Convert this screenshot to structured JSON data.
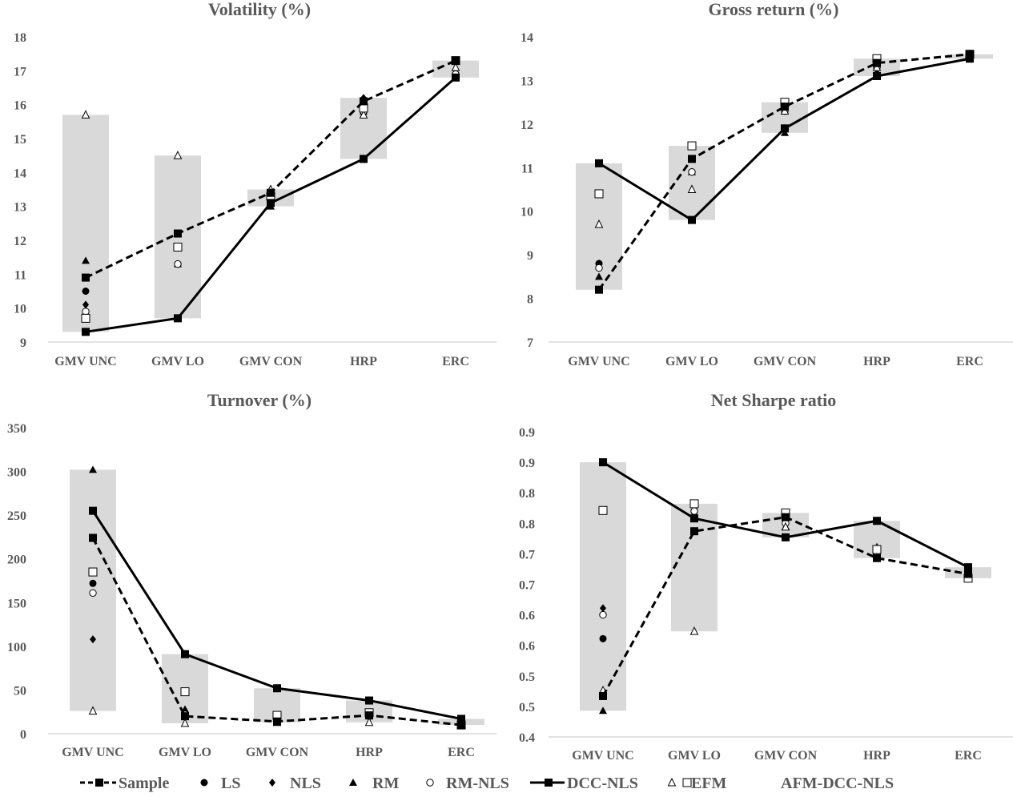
{
  "legend": [
    "Sample",
    "LS",
    "NLS",
    "RM",
    "RM-NLS",
    "DCC-NLS",
    "EFM",
    "AFM-DCC-NLS"
  ],
  "colors": {
    "bar": "#d9d9d9",
    "line": "#000000",
    "text": "#595959",
    "axis": "#d9d9d9"
  },
  "chart_data": [
    {
      "type": "line",
      "title": "Volatility (%)",
      "categories": [
        "GMV UNC",
        "GMV LO",
        "GMV CON",
        "HRP",
        "ERC"
      ],
      "ylim": [
        9,
        18
      ],
      "yticks": [
        {
          "v": 9,
          "label": "9"
        },
        {
          "v": 10,
          "label": "10"
        },
        {
          "v": 11,
          "label": "11"
        },
        {
          "v": 12,
          "label": "12"
        },
        {
          "v": 13,
          "label": "13"
        },
        {
          "v": 14,
          "label": "14"
        },
        {
          "v": 15,
          "label": "15"
        },
        {
          "v": 16,
          "label": "16"
        },
        {
          "v": 17,
          "label": "17"
        },
        {
          "v": 18,
          "label": "18"
        }
      ],
      "series": [
        {
          "name": "Sample",
          "values": [
            10.9,
            12.2,
            13.4,
            16.1,
            17.3
          ]
        },
        {
          "name": "LS",
          "values": [
            10.5,
            11.3,
            13.1,
            16.1,
            16.9
          ]
        },
        {
          "name": "NLS",
          "values": [
            10.1,
            11.3,
            13.1,
            16.2,
            16.9
          ]
        },
        {
          "name": "RM",
          "values": [
            11.4,
            11.3,
            13.0,
            15.8,
            16.9
          ]
        },
        {
          "name": "RM-NLS",
          "values": [
            9.9,
            11.3,
            13.1,
            15.8,
            16.9
          ]
        },
        {
          "name": "DCC-NLS",
          "values": [
            9.3,
            9.7,
            13.1,
            14.4,
            16.8
          ]
        },
        {
          "name": "EFM",
          "values": [
            15.7,
            14.5,
            13.5,
            15.7,
            17.1
          ]
        },
        {
          "name": "AFM-DCC-NLS",
          "values": [
            9.7,
            11.8,
            13.3,
            15.9,
            17.3
          ]
        }
      ]
    },
    {
      "type": "line",
      "title": "Gross return (%)",
      "categories": [
        "GMV UNC",
        "GMV LO",
        "GMV CON",
        "HRP",
        "ERC"
      ],
      "ylim": [
        7,
        14
      ],
      "yticks": [
        {
          "v": 7,
          "label": "7"
        },
        {
          "v": 8,
          "label": "8"
        },
        {
          "v": 9,
          "label": "9"
        },
        {
          "v": 10,
          "label": "10"
        },
        {
          "v": 11,
          "label": "11"
        },
        {
          "v": 12,
          "label": "12"
        },
        {
          "v": 13,
          "label": "13"
        },
        {
          "v": 14,
          "label": "14"
        }
      ],
      "series": [
        {
          "name": "Sample",
          "values": [
            8.2,
            11.2,
            12.4,
            13.4,
            13.6
          ]
        },
        {
          "name": "LS",
          "values": [
            8.8,
            10.9,
            12.3,
            13.3,
            13.5
          ]
        },
        {
          "name": "NLS",
          "values": [
            8.8,
            10.9,
            12.3,
            13.3,
            13.5
          ]
        },
        {
          "name": "RM",
          "values": [
            8.5,
            10.9,
            11.8,
            13.2,
            13.5
          ]
        },
        {
          "name": "RM-NLS",
          "values": [
            8.7,
            10.9,
            12.3,
            13.3,
            13.5
          ]
        },
        {
          "name": "DCC-NLS",
          "values": [
            11.1,
            9.8,
            11.9,
            13.1,
            13.5
          ]
        },
        {
          "name": "EFM",
          "values": [
            9.7,
            10.5,
            12.3,
            13.3,
            13.6
          ]
        },
        {
          "name": "AFM-DCC-NLS",
          "values": [
            10.4,
            11.5,
            12.5,
            13.5,
            13.6
          ]
        }
      ]
    },
    {
      "type": "line",
      "title": "Turnover (%)",
      "categories": [
        "GMV UNC",
        "GMV LO",
        "GMV CON",
        "HRP",
        "ERC"
      ],
      "ylim": [
        0,
        350
      ],
      "yticks": [
        {
          "v": 0,
          "label": "0"
        },
        {
          "v": 50,
          "label": "50"
        },
        {
          "v": 100,
          "label": "100"
        },
        {
          "v": 150,
          "label": "150"
        },
        {
          "v": 200,
          "label": "200"
        },
        {
          "v": 250,
          "label": "250"
        },
        {
          "v": 300,
          "label": "300"
        },
        {
          "v": 350,
          "label": "350"
        }
      ],
      "series": [
        {
          "name": "Sample",
          "values": [
            224,
            20,
            14,
            21,
            10
          ]
        },
        {
          "name": "LS",
          "values": [
            172,
            22,
            14,
            20,
            11
          ]
        },
        {
          "name": "NLS",
          "values": [
            108,
            22,
            14,
            20,
            11
          ]
        },
        {
          "name": "RM",
          "values": [
            302,
            28,
            14,
            20,
            11
          ]
        },
        {
          "name": "RM-NLS",
          "values": [
            161,
            22,
            14,
            20,
            11
          ]
        },
        {
          "name": "DCC-NLS",
          "values": [
            255,
            91,
            52,
            38,
            17
          ]
        },
        {
          "name": "EFM",
          "values": [
            26,
            12,
            13,
            13,
            11
          ]
        },
        {
          "name": "AFM-DCC-NLS",
          "values": [
            185,
            48,
            21,
            24,
            10
          ]
        }
      ]
    },
    {
      "type": "line",
      "title": "Net Sharpe ratio",
      "categories": [
        "GMV UNC",
        "GMV LO",
        "GMV CON",
        "HRP",
        "ERC"
      ],
      "ylim": [
        0.4,
        0.9
      ],
      "yticks": [
        {
          "v": 0.4,
          "label": "0.4"
        },
        {
          "v": 0.45,
          "label": "0.5"
        },
        {
          "v": 0.5,
          "label": "0.5"
        },
        {
          "v": 0.55,
          "label": "0.6"
        },
        {
          "v": 0.6,
          "label": "0.6"
        },
        {
          "v": 0.65,
          "label": "0.7"
        },
        {
          "v": 0.7,
          "label": "0.7"
        },
        {
          "v": 0.75,
          "label": "0.8"
        },
        {
          "v": 0.8,
          "label": "0.8"
        },
        {
          "v": 0.85,
          "label": "0.9"
        },
        {
          "v": 0.9,
          "label": "0.9"
        }
      ],
      "series": [
        {
          "name": "Sample",
          "values": [
            0.467,
            0.737,
            0.76,
            0.693,
            0.667
          ]
        },
        {
          "name": "LS",
          "values": [
            0.561,
            0.769,
            0.75,
            0.7,
            0.67
          ]
        },
        {
          "name": "NLS",
          "values": [
            0.611,
            0.769,
            0.76,
            0.7,
            0.67
          ]
        },
        {
          "name": "RM",
          "values": [
            0.443,
            0.765,
            0.745,
            0.7,
            0.67
          ]
        },
        {
          "name": "RM-NLS",
          "values": [
            0.6,
            0.77,
            0.75,
            0.7,
            0.67
          ]
        },
        {
          "name": "DCC-NLS",
          "values": [
            0.85,
            0.758,
            0.727,
            0.754,
            0.678
          ]
        },
        {
          "name": "EFM",
          "values": [
            0.476,
            0.573,
            0.744,
            0.71,
            0.672
          ]
        },
        {
          "name": "AFM-DCC-NLS",
          "values": [
            0.771,
            0.782,
            0.767,
            0.707,
            0.66
          ]
        }
      ]
    }
  ]
}
